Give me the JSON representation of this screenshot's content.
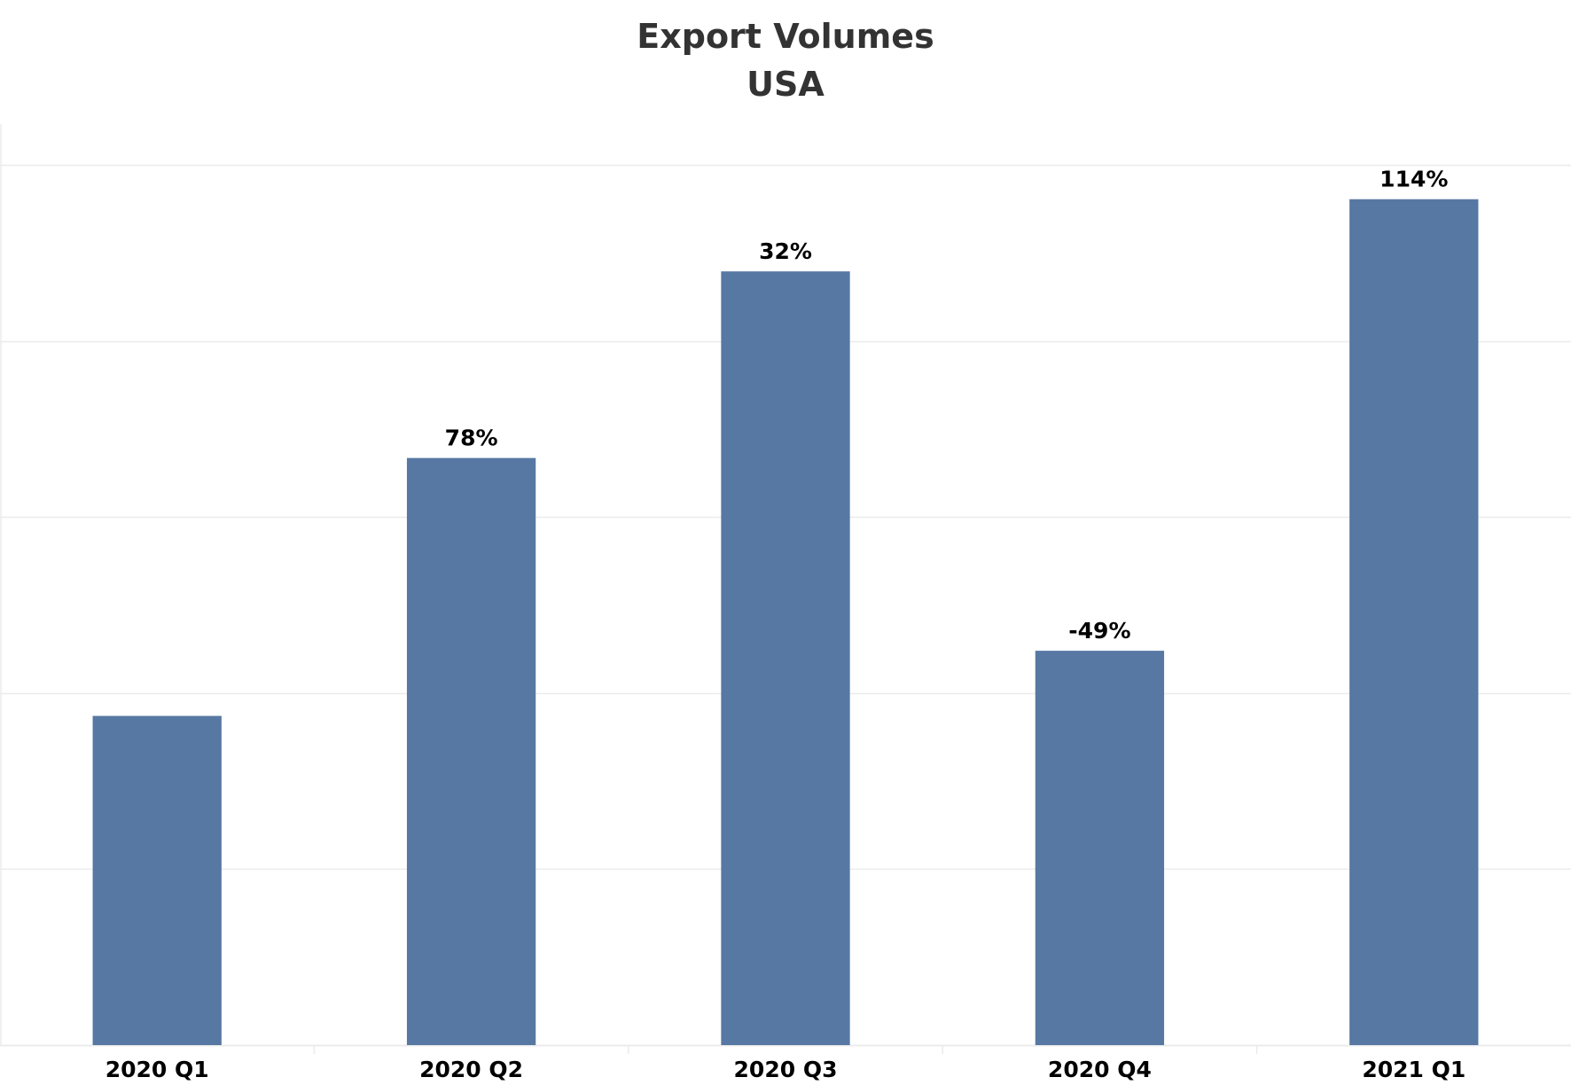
{
  "chart_data": {
    "type": "bar",
    "title": "Export Volumes",
    "subtitle": "USA",
    "categories": [
      "2020 Q1",
      "2020 Q2",
      "2020 Q3",
      "2020 Q4",
      "2021 Q1"
    ],
    "values": [
      37.4,
      66.7,
      87.9,
      44.8,
      96.1
    ],
    "data_labels": [
      "",
      "78%",
      "32%",
      "-49%",
      "114%"
    ],
    "xlabel": "",
    "ylabel": "",
    "ylim": [
      0,
      100
    ],
    "grid": true,
    "bar_color": "#5778a3",
    "grid_color": "#ebebeb",
    "label_color": "#000000"
  }
}
